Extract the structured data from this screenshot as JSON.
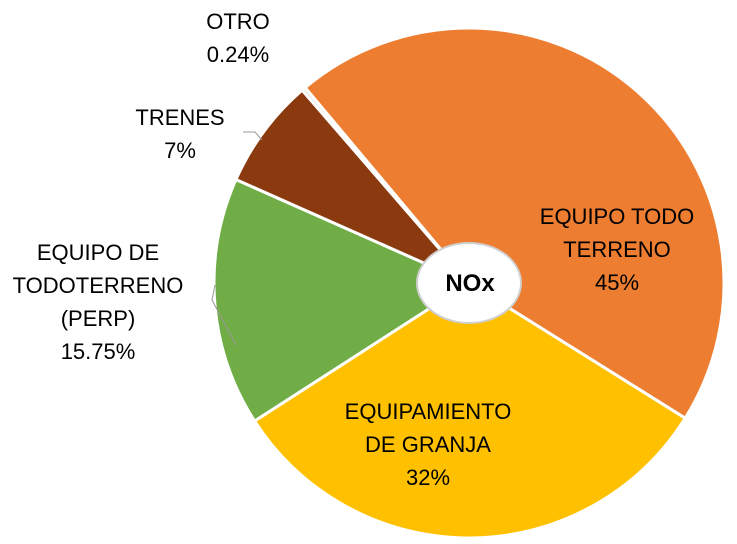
{
  "chart_data": {
    "type": "pie",
    "center_label": "NOx",
    "categories": [
      "EQUIPO TODO TERRENO",
      "EQUIPAMIENTO DE GRANJA",
      "EQUIPO DE TODOTERRENO (PERP)",
      "TRENES",
      "OTRO"
    ],
    "values": [
      45,
      32,
      15.75,
      7,
      0.24
    ],
    "value_labels": [
      "45%",
      "32%",
      "15.75%",
      "7%",
      "0.24%"
    ],
    "colors": [
      "#ed7d31",
      "#ffc000",
      "#70ad47",
      "#8b3a0f",
      "#d9d9d9"
    ]
  }
}
